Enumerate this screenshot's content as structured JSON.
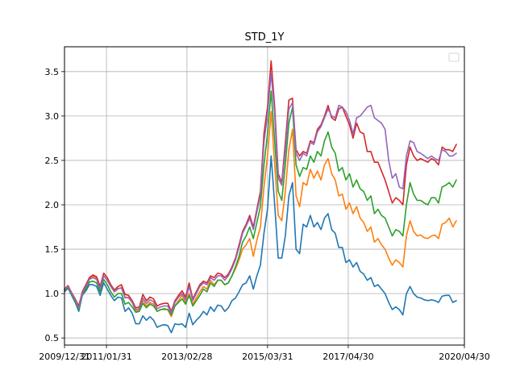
{
  "chart_data": {
    "type": "line",
    "title": "STD_1Y",
    "xlabel": "",
    "ylabel": "",
    "x_start": "2009/12/31",
    "x_end": "2020/04/30",
    "xlim": [
      "2009/12/31",
      "2020/04/30"
    ],
    "ylim": [
      0.42,
      3.78
    ],
    "grid": true,
    "legend": {
      "placement": "upper right",
      "entries": []
    },
    "x_ticks": [
      "2009/12/31",
      "2011/01/31",
      "2013/02/28",
      "2015/03/31",
      "2017/04/30",
      "2020/04/30"
    ],
    "y_ticks": [
      0.5,
      1.0,
      1.5,
      2.0,
      2.5,
      3.0,
      3.5
    ],
    "y_tick_labels": [
      "0.5",
      "1.0",
      "1.5",
      "2.0",
      "2.5",
      "3.0",
      "3.5"
    ],
    "series": [
      {
        "color": "#1f77b4",
        "values": [
          1.02,
          1.06,
          0.98,
          0.9,
          0.8,
          0.98,
          1.03,
          1.1,
          1.1,
          1.08,
          0.98,
          1.12,
          1.05,
          0.98,
          0.92,
          0.96,
          0.95,
          0.8,
          0.84,
          0.78,
          0.66,
          0.66,
          0.75,
          0.7,
          0.74,
          0.7,
          0.62,
          0.64,
          0.65,
          0.64,
          0.56,
          0.66,
          0.65,
          0.66,
          0.62,
          0.78,
          0.65,
          0.7,
          0.74,
          0.8,
          0.76,
          0.85,
          0.8,
          0.87,
          0.86,
          0.8,
          0.84,
          0.92,
          0.95,
          1.02,
          1.1,
          1.12,
          1.2,
          1.05,
          1.2,
          1.32,
          1.68,
          1.95,
          2.55,
          2.0,
          1.4,
          1.4,
          1.65,
          2.1,
          2.25,
          1.5,
          1.45,
          1.78,
          1.75,
          1.88,
          1.75,
          1.8,
          1.72,
          1.85,
          1.9,
          1.72,
          1.68,
          1.52,
          1.52,
          1.35,
          1.38,
          1.3,
          1.35,
          1.25,
          1.22,
          1.15,
          1.18,
          1.08,
          1.1,
          1.05,
          1.0,
          0.9,
          0.82,
          0.85,
          0.82,
          0.76,
          1.0,
          1.08,
          1.0,
          0.96,
          0.95,
          0.93,
          0.92,
          0.93,
          0.92,
          0.9,
          0.97,
          0.98,
          0.98,
          0.9,
          0.92
        ]
      },
      {
        "color": "#ff7f0e",
        "values": [
          1.04,
          1.08,
          1.0,
          0.93,
          0.83,
          1.0,
          1.08,
          1.17,
          1.2,
          1.17,
          1.06,
          1.2,
          1.15,
          1.08,
          1.02,
          1.05,
          1.07,
          0.96,
          0.95,
          0.9,
          0.8,
          0.82,
          0.92,
          0.86,
          0.9,
          0.88,
          0.8,
          0.82,
          0.82,
          0.82,
          0.74,
          0.86,
          0.92,
          0.98,
          0.9,
          1.0,
          0.88,
          0.95,
          1.02,
          1.08,
          1.05,
          1.15,
          1.1,
          1.15,
          1.15,
          1.1,
          1.12,
          1.2,
          1.28,
          1.38,
          1.5,
          1.55,
          1.62,
          1.42,
          1.6,
          1.75,
          2.2,
          2.55,
          3.05,
          2.45,
          1.88,
          1.82,
          2.15,
          2.62,
          2.85,
          2.1,
          1.98,
          2.25,
          2.22,
          2.4,
          2.3,
          2.38,
          2.28,
          2.45,
          2.52,
          2.35,
          2.28,
          2.1,
          2.12,
          1.95,
          2.02,
          1.9,
          1.98,
          1.85,
          1.8,
          1.7,
          1.75,
          1.58,
          1.62,
          1.55,
          1.5,
          1.4,
          1.32,
          1.38,
          1.35,
          1.3,
          1.65,
          1.82,
          1.7,
          1.65,
          1.66,
          1.63,
          1.62,
          1.65,
          1.66,
          1.62,
          1.78,
          1.8,
          1.85,
          1.75,
          1.82
        ]
      },
      {
        "color": "#2ca02c",
        "values": [
          1.03,
          1.07,
          0.99,
          0.91,
          0.82,
          0.99,
          1.05,
          1.13,
          1.14,
          1.12,
          1.02,
          1.16,
          1.1,
          1.02,
          0.96,
          1.0,
          1.0,
          0.88,
          0.9,
          0.85,
          0.79,
          0.8,
          0.89,
          0.84,
          0.88,
          0.86,
          0.8,
          0.82,
          0.83,
          0.82,
          0.76,
          0.86,
          0.9,
          0.94,
          0.88,
          0.98,
          0.86,
          0.92,
          0.98,
          1.05,
          1.02,
          1.12,
          1.08,
          1.15,
          1.15,
          1.1,
          1.12,
          1.2,
          1.3,
          1.42,
          1.58,
          1.65,
          1.75,
          1.62,
          1.8,
          1.98,
          2.45,
          2.8,
          3.28,
          2.72,
          2.15,
          2.05,
          2.45,
          2.92,
          3.1,
          2.45,
          2.32,
          2.42,
          2.4,
          2.55,
          2.48,
          2.6,
          2.55,
          2.72,
          2.82,
          2.65,
          2.58,
          2.38,
          2.42,
          2.28,
          2.35,
          2.2,
          2.28,
          2.18,
          2.15,
          2.05,
          2.1,
          1.9,
          1.95,
          1.88,
          1.85,
          1.75,
          1.65,
          1.72,
          1.7,
          1.65,
          2.0,
          2.25,
          2.12,
          2.05,
          2.05,
          2.02,
          2.0,
          2.08,
          2.08,
          2.02,
          2.2,
          2.22,
          2.25,
          2.2,
          2.28
        ]
      },
      {
        "color": "#d62728",
        "values": [
          1.05,
          1.09,
          1.01,
          0.94,
          0.86,
          1.02,
          1.1,
          1.18,
          1.21,
          1.19,
          1.08,
          1.23,
          1.18,
          1.1,
          1.04,
          1.08,
          1.1,
          0.99,
          0.98,
          0.92,
          0.84,
          0.85,
          0.99,
          0.92,
          0.96,
          0.94,
          0.86,
          0.88,
          0.89,
          0.89,
          0.8,
          0.92,
          0.98,
          1.03,
          0.96,
          1.12,
          0.94,
          1.02,
          1.1,
          1.14,
          1.12,
          1.2,
          1.18,
          1.23,
          1.22,
          1.18,
          1.22,
          1.3,
          1.4,
          1.55,
          1.7,
          1.78,
          1.88,
          1.75,
          1.95,
          2.15,
          2.8,
          3.1,
          3.62,
          3.1,
          2.35,
          2.25,
          2.7,
          3.18,
          3.2,
          2.62,
          2.55,
          2.6,
          2.58,
          2.72,
          2.7,
          2.85,
          2.9,
          3.0,
          3.12,
          2.98,
          2.95,
          3.08,
          3.1,
          3.0,
          2.9,
          2.75,
          2.92,
          2.82,
          2.8,
          2.6,
          2.6,
          2.48,
          2.48,
          2.38,
          2.28,
          2.15,
          2.02,
          2.08,
          2.05,
          2.0,
          2.45,
          2.65,
          2.55,
          2.5,
          2.52,
          2.5,
          2.48,
          2.52,
          2.5,
          2.45,
          2.65,
          2.62,
          2.62,
          2.6,
          2.68
        ]
      },
      {
        "color": "#9467bd",
        "values": [
          1.04,
          1.08,
          1.0,
          0.93,
          0.84,
          1.0,
          1.08,
          1.16,
          1.18,
          1.16,
          1.05,
          1.2,
          1.15,
          1.08,
          1.02,
          1.06,
          1.06,
          0.95,
          0.96,
          0.9,
          0.82,
          0.83,
          0.95,
          0.89,
          0.93,
          0.91,
          0.83,
          0.85,
          0.86,
          0.86,
          0.78,
          0.9,
          0.96,
          1.0,
          0.93,
          1.08,
          0.92,
          1.0,
          1.08,
          1.12,
          1.1,
          1.18,
          1.15,
          1.2,
          1.2,
          1.15,
          1.2,
          1.28,
          1.38,
          1.52,
          1.68,
          1.76,
          1.85,
          1.72,
          1.92,
          2.1,
          2.7,
          3.02,
          3.48,
          3.02,
          2.3,
          2.22,
          2.62,
          3.08,
          3.15,
          2.58,
          2.5,
          2.58,
          2.55,
          2.7,
          2.68,
          2.82,
          2.88,
          2.98,
          3.08,
          3.0,
          2.98,
          3.12,
          3.1,
          3.05,
          2.95,
          2.8,
          2.98,
          3.0,
          3.05,
          3.1,
          3.12,
          2.98,
          2.95,
          2.92,
          2.85,
          2.5,
          2.3,
          2.35,
          2.2,
          2.18,
          2.55,
          2.72,
          2.7,
          2.6,
          2.58,
          2.55,
          2.52,
          2.55,
          2.52,
          2.5,
          2.62,
          2.6,
          2.55,
          2.55,
          2.58
        ]
      }
    ]
  }
}
